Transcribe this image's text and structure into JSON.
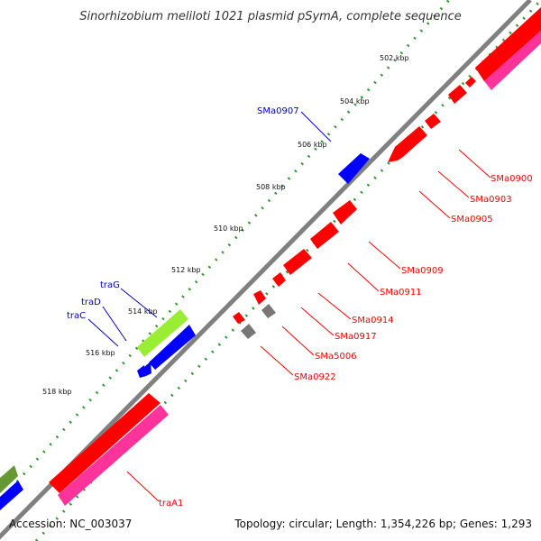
{
  "title": "Sinorhizobium meliloti 1021 plasmid pSymA, complete sequence",
  "footer": {
    "accession": "Accession: NC_003037",
    "summary": "Topology: circular; Length: 1,354,226 bp; Genes: 1,293"
  },
  "ticks": [
    "502 kbp",
    "504 kbp",
    "506 kbp",
    "508 kbp",
    "510 kbp",
    "512 kbp",
    "514 kbp",
    "516 kbp",
    "518 kbp"
  ],
  "gene_labels": {
    "SMa0907": "SMa0907",
    "SMa0900": "SMa0900",
    "SMa0903": "SMa0903",
    "SMa0905": "SMa0905",
    "SMa0909": "SMa0909",
    "SMa0911": "SMa0911",
    "SMa0914": "SMa0914",
    "SMa0917": "SMa0917",
    "SMa5006": "SMa5006",
    "SMa0922": "SMa0922",
    "traG": "traG",
    "traD": "traD",
    "traC": "traC",
    "traA1": "traA1"
  },
  "colors": {
    "forward_cds": "#0000ff",
    "reverse_cds": "#ff0000",
    "pink_feature": "#ff3399",
    "green_feature": "#99ee33",
    "olive_feature": "#669933",
    "grey_feature": "#777777",
    "backbone": "#808080",
    "dots": "#339933"
  }
}
